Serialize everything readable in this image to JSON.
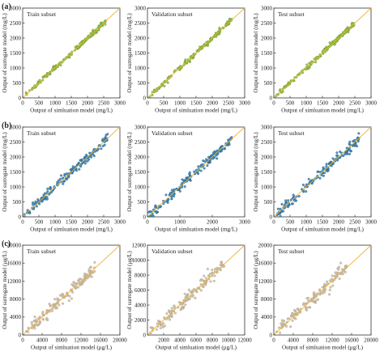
{
  "figure": {
    "rows": [
      {
        "label": "(a)",
        "point_color": "#8fc23a",
        "edge_color": "#5f8f1f",
        "panels": [
          {
            "title": "Train subset",
            "xticks": [
              "0",
              "500",
              "1000",
              "1500",
              "2000",
              "2500",
              "3000"
            ],
            "yticks": [
              "0",
              "500",
              "1000",
              "1500",
              "2000",
              "2500",
              "3000"
            ],
            "xlabel": "Output of simluation model (mg/L)",
            "ylabel": "Output of surrogate model (mg/L)"
          },
          {
            "title": "Validation subset",
            "xticks": [
              "0",
              "500",
              "1000",
              "1500",
              "2000",
              "2500",
              "3000"
            ],
            "yticks": [
              "0",
              "500",
              "1000",
              "1500",
              "2000",
              "2500",
              "3000"
            ],
            "xlabel": "Output of simluation model (mg/L)",
            "ylabel": "Output of surrogate model (mg/L)"
          },
          {
            "title": "Test subset",
            "xticks": [
              "0",
              "500",
              "1000",
              "1500",
              "2000",
              "2500",
              "3000"
            ],
            "yticks": [
              "0",
              "500",
              "1000",
              "1500",
              "2000",
              "2500",
              "3000"
            ],
            "xlabel": "Output of simluation model (mg/L)",
            "ylabel": "Output of surrogate model (mg/L)"
          }
        ]
      },
      {
        "label": "(b)",
        "point_color": "#3a86b8",
        "edge_color": "#1d5a85",
        "panels": [
          {
            "title": "Train subset",
            "xticks": [
              "0",
              "500",
              "1000",
              "1500",
              "2000",
              "2500",
              "3000"
            ],
            "yticks": [
              "0",
              "500",
              "1000",
              "1500",
              "2000",
              "2500",
              "3000"
            ],
            "xlabel": "Output of simluation model (mg/L)",
            "ylabel": "Output of surrogate model (mg/L)"
          },
          {
            "title": "Validation subset",
            "xticks": [
              "0",
              "1000",
              "2000",
              "3000"
            ],
            "yticks": [
              "0",
              "500",
              "1000",
              "1500",
              "2000",
              "2500",
              "3000"
            ],
            "xlabel": "Output of simluation model (mg/L)",
            "ylabel": "Output of surrogate model (mg/L)"
          },
          {
            "title": "Test subset",
            "xticks": [
              "0",
              "500",
              "1000",
              "1500",
              "2000",
              "2500",
              "3000"
            ],
            "yticks": [
              "0",
              "500",
              "1000",
              "1500",
              "2000",
              "2500",
              "3000"
            ],
            "xlabel": "Output of simluation model (mg/L)",
            "ylabel": "Output of surrogate model (mg/L)"
          }
        ]
      },
      {
        "label": "(c)",
        "point_color": "#cdbfa6",
        "edge_color": "#a89a82",
        "panels": [
          {
            "title": "Train subset",
            "xticks": [
              "0",
              "4000",
              "8000",
              "12000",
              "16000",
              "20000"
            ],
            "yticks": [
              "0",
              "4000",
              "8000",
              "12000",
              "16000",
              "20000"
            ],
            "xlabel": "Output of simluation model (μg/L)",
            "ylabel": "Output of surrogate model (μg/L)"
          },
          {
            "title": "Validation subset",
            "xticks": [
              "2000",
              "4000",
              "6000",
              "8000",
              "10000",
              "12000"
            ],
            "yticks": [
              "0",
              "2000",
              "4000",
              "6000",
              "8000",
              "10000",
              "12000"
            ],
            "xlabel": "Output of simluation model (μg/L)",
            "ylabel": "Output of surrogate model (μg/L)"
          },
          {
            "title": "Test subset",
            "xticks": [
              "0",
              "4000",
              "8000",
              "12000",
              "16000",
              "20000"
            ],
            "yticks": [
              "0",
              "4000",
              "8000",
              "12000",
              "16000",
              "20000"
            ],
            "xlabel": "Output of simluation model (μg/L)",
            "ylabel": "Output of surrogate model (μg/L)"
          }
        ]
      }
    ],
    "line_color": "#f0b43c"
  },
  "chart_data": [
    {
      "type": "scatter",
      "row": "(a)",
      "title": "Train subset",
      "xlabel": "Output of simluation model (mg/L)",
      "ylabel": "Output of surrogate model (mg/L)",
      "xlim": [
        0,
        3000
      ],
      "ylim": [
        0,
        3000
      ],
      "reference_line": "y = x",
      "n_points": 150,
      "x_range": [
        60,
        2600
      ],
      "scatter_spread": 40
    },
    {
      "type": "scatter",
      "row": "(a)",
      "title": "Validation subset",
      "xlabel": "Output of simluation model (mg/L)",
      "ylabel": "Output of surrogate model (mg/L)",
      "xlim": [
        0,
        3000
      ],
      "ylim": [
        0,
        3000
      ],
      "reference_line": "y = x",
      "n_points": 150,
      "x_range": [
        60,
        2600
      ],
      "scatter_spread": 40
    },
    {
      "type": "scatter",
      "row": "(a)",
      "title": "Test subset",
      "xlabel": "Output of simluation model (mg/L)",
      "ylabel": "Output of surrogate model (mg/L)",
      "xlim": [
        0,
        3000
      ],
      "ylim": [
        0,
        3000
      ],
      "reference_line": "y = x",
      "n_points": 150,
      "x_range": [
        60,
        2500
      ],
      "scatter_spread": 40
    },
    {
      "type": "scatter",
      "row": "(b)",
      "title": "Train subset",
      "xlabel": "Output of simluation model (mg/L)",
      "ylabel": "Output of surrogate model (mg/L)",
      "xlim": [
        0,
        3000
      ],
      "ylim": [
        0,
        3000
      ],
      "reference_line": "y = x",
      "n_points": 170,
      "x_range": [
        40,
        2650
      ],
      "scatter_spread": 70
    },
    {
      "type": "scatter",
      "row": "(b)",
      "title": "Validation subset",
      "xlabel": "Output of simluation model (mg/L)",
      "ylabel": "Output of surrogate model (mg/L)",
      "xlim": [
        0,
        3000
      ],
      "ylim": [
        0,
        3000
      ],
      "reference_line": "y = x",
      "n_points": 170,
      "x_range": [
        40,
        2600
      ],
      "scatter_spread": 70
    },
    {
      "type": "scatter",
      "row": "(b)",
      "title": "Test subset",
      "xlabel": "Output of simluation model (mg/L)",
      "ylabel": "Output of surrogate model (mg/L)",
      "xlim": [
        0,
        3000
      ],
      "ylim": [
        0,
        3000
      ],
      "reference_line": "y = x",
      "n_points": 170,
      "x_range": [
        40,
        2650
      ],
      "scatter_spread": 80
    },
    {
      "type": "scatter",
      "row": "(c)",
      "title": "Train subset",
      "xlabel": "Output of simluation model (μg/L)",
      "ylabel": "Output of surrogate model (μg/L)",
      "xlim": [
        0,
        20000
      ],
      "ylim": [
        0,
        20000
      ],
      "reference_line": "y = x",
      "n_points": 140,
      "x_range": [
        500,
        15000
      ],
      "scatter_spread": 700
    },
    {
      "type": "scatter",
      "row": "(c)",
      "title": "Validation subset",
      "xlabel": "Output of simluation model (μg/L)",
      "ylabel": "Output of surrogate model (μg/L)",
      "xlim": [
        0,
        12000
      ],
      "ylim": [
        0,
        12000
      ],
      "reference_line": "y = x",
      "n_points": 140,
      "x_range": [
        300,
        9500
      ],
      "scatter_spread": 450
    },
    {
      "type": "scatter",
      "row": "(c)",
      "title": "Test subset",
      "xlabel": "Output of simluation model (μg/L)",
      "ylabel": "Output of surrogate model (μg/L)",
      "xlim": [
        0,
        20000
      ],
      "ylim": [
        0,
        20000
      ],
      "reference_line": "y = x",
      "n_points": 140,
      "x_range": [
        500,
        15000
      ],
      "scatter_spread": 700
    }
  ]
}
